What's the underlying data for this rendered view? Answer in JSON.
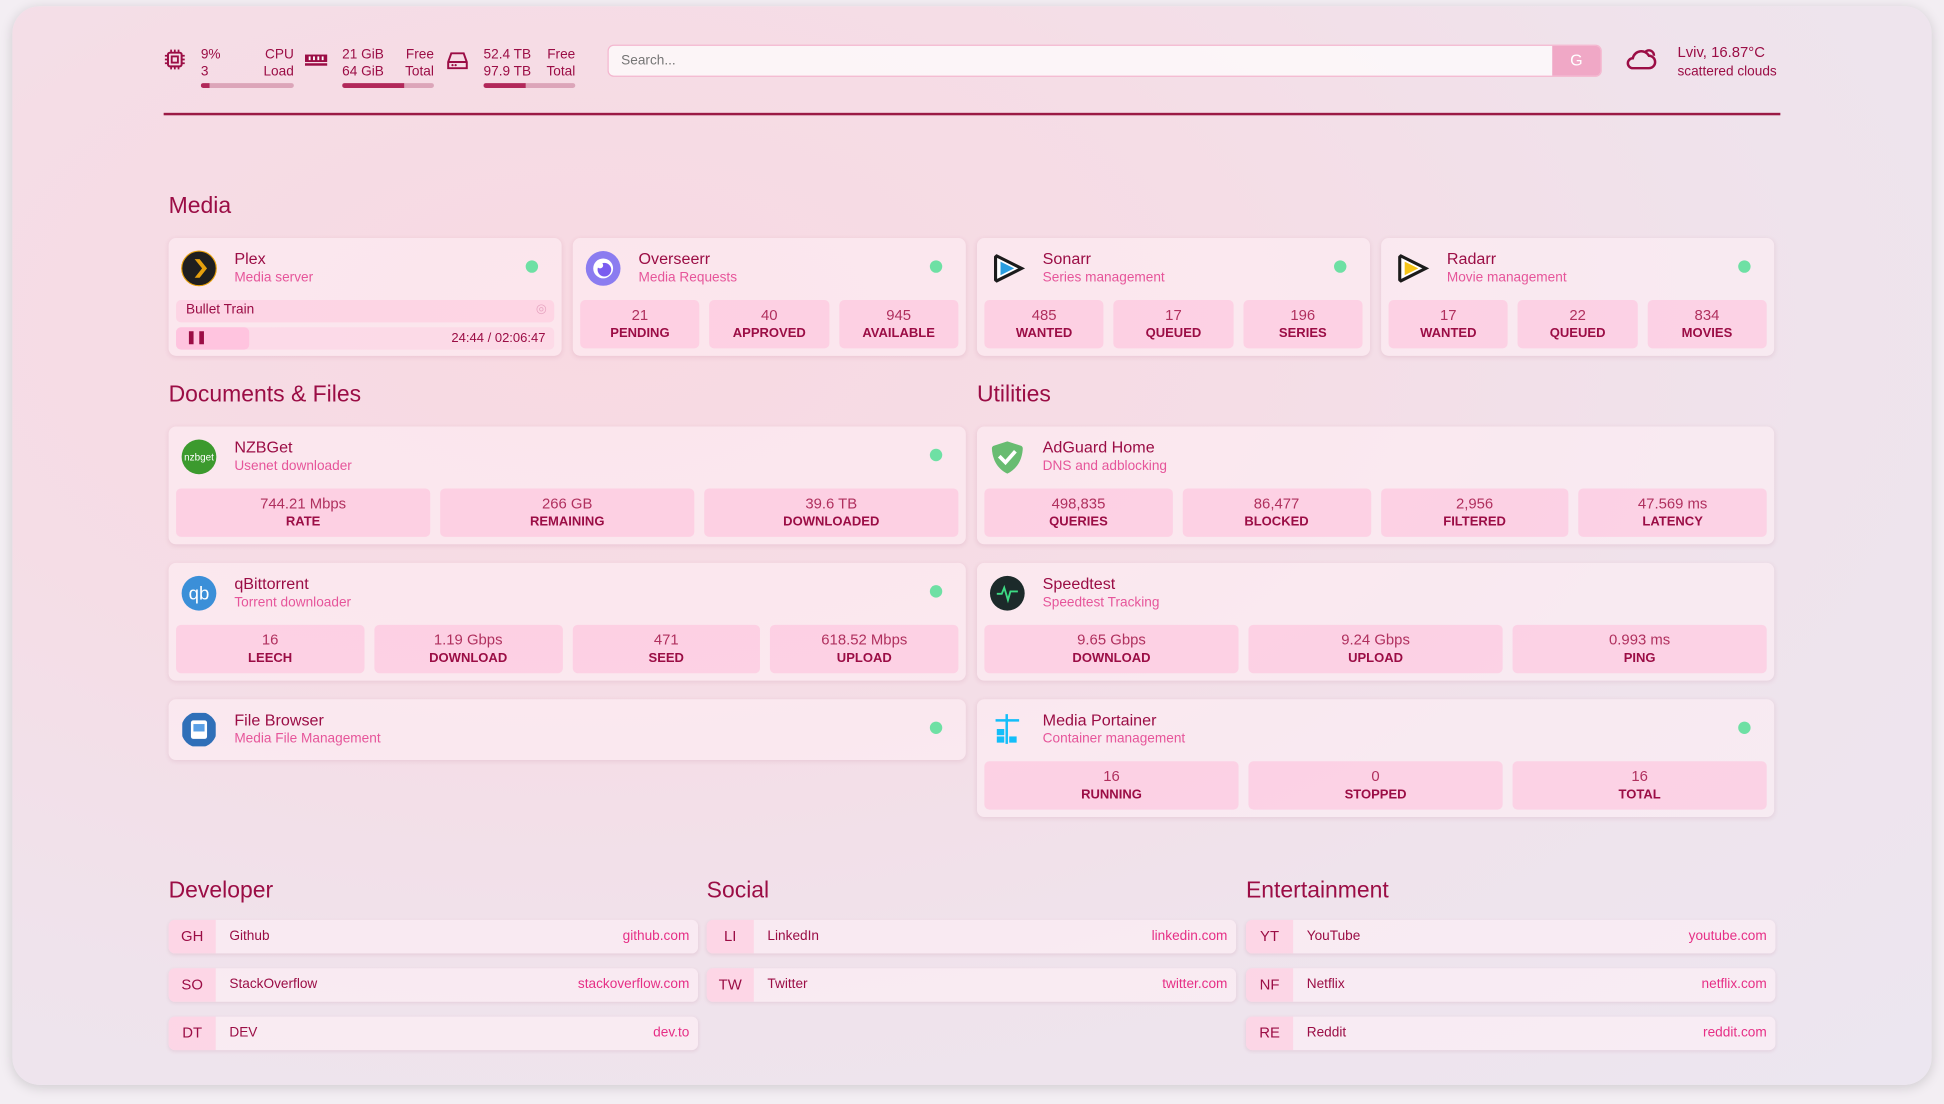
{
  "header": {
    "cpu": {
      "value": "9%",
      "label": "CPU",
      "sub_value": "3",
      "sub_label": "Load",
      "percent": 9
    },
    "memory": {
      "value": "21 GiB",
      "label": "Free",
      "sub_value": "64 GiB",
      "sub_label": "Total",
      "percent": 67
    },
    "disk": {
      "value": "52.4 TB",
      "label": "Free",
      "sub_value": "97.9 TB",
      "sub_label": "Total",
      "percent": 46
    },
    "search": {
      "placeholder": "Search...",
      "button": "G"
    },
    "weather": {
      "location": "Lviv, 16.87°C",
      "condition": "scattered clouds",
      "icon": "cloud-sun-icon"
    }
  },
  "sections": {
    "media": "Media",
    "documents": "Documents & Files",
    "utilities": "Utilities",
    "developer": "Developer",
    "social": "Social",
    "entertainment": "Entertainment"
  },
  "media": [
    {
      "id": "plex",
      "title": "Plex",
      "subtitle": "Media server",
      "icon": "plex-icon",
      "color": "#1f1f1f",
      "status": "online",
      "now_playing": {
        "title": "Bullet Train",
        "time": "24:44 / 02:06:47",
        "progress": 19.5
      }
    },
    {
      "id": "overseerr",
      "title": "Overseerr",
      "subtitle": "Media Requests",
      "icon": "overseerr-icon",
      "color": "#8b7cf0",
      "status": "online",
      "stats": [
        {
          "value": "21",
          "label": "PENDING"
        },
        {
          "value": "40",
          "label": "APPROVED"
        },
        {
          "value": "945",
          "label": "AVAILABLE"
        }
      ]
    },
    {
      "id": "sonarr",
      "title": "Sonarr",
      "subtitle": "Series management",
      "icon": "sonarr-icon",
      "color": "#2a9ee0",
      "status": "online",
      "stats": [
        {
          "value": "485",
          "label": "WANTED"
        },
        {
          "value": "17",
          "label": "QUEUED"
        },
        {
          "value": "196",
          "label": "SERIES"
        }
      ]
    },
    {
      "id": "radarr",
      "title": "Radarr",
      "subtitle": "Movie management",
      "icon": "radarr-icon",
      "color": "#f5c518",
      "status": "online",
      "stats": [
        {
          "value": "17",
          "label": "WANTED"
        },
        {
          "value": "22",
          "label": "QUEUED"
        },
        {
          "value": "834",
          "label": "MOVIES"
        }
      ]
    }
  ],
  "documents": [
    {
      "id": "nzbget",
      "title": "NZBGet",
      "subtitle": "Usenet downloader",
      "icon": "nzbget-icon",
      "icon_text": "nzbget",
      "color": "#3c9a2e",
      "status": "online",
      "stats": [
        {
          "value": "744.21 Mbps",
          "label": "RATE"
        },
        {
          "value": "266 GB",
          "label": "REMAINING"
        },
        {
          "value": "39.6 TB",
          "label": "DOWNLOADED"
        }
      ]
    },
    {
      "id": "qbittorrent",
      "title": "qBittorrent",
      "subtitle": "Torrent downloader",
      "icon": "qbittorrent-icon",
      "icon_text": "qb",
      "color": "#3b8fd8",
      "status": "online",
      "stats": [
        {
          "value": "16",
          "label": "LEECH"
        },
        {
          "value": "1.19 Gbps",
          "label": "DOWNLOAD"
        },
        {
          "value": "471",
          "label": "SEED"
        },
        {
          "value": "618.52 Mbps",
          "label": "UPLOAD"
        }
      ]
    },
    {
      "id": "filebrowser",
      "title": "File Browser",
      "subtitle": "Media File Management",
      "icon": "file-browser-icon",
      "color": "#2f6fb8",
      "status": "online"
    }
  ],
  "utilities": [
    {
      "id": "adguard",
      "title": "AdGuard Home",
      "subtitle": "DNS and adblocking",
      "icon": "adguard-shield-icon",
      "color": "#68bc71",
      "stats": [
        {
          "value": "498,835",
          "label": "QUERIES"
        },
        {
          "value": "86,477",
          "label": "BLOCKED"
        },
        {
          "value": "2,956",
          "label": "FILTERED"
        },
        {
          "value": "47.569 ms",
          "label": "LATENCY"
        }
      ]
    },
    {
      "id": "speedtest",
      "title": "Speedtest",
      "subtitle": "Speedtest Tracking",
      "icon": "speedtest-icon",
      "color": "#1c2a2a",
      "stats": [
        {
          "value": "9.65 Gbps",
          "label": "DOWNLOAD"
        },
        {
          "value": "9.24 Gbps",
          "label": "UPLOAD"
        },
        {
          "value": "0.993 ms",
          "label": "PING"
        }
      ]
    },
    {
      "id": "portainer",
      "title": "Media Portainer",
      "subtitle": "Container management",
      "icon": "portainer-icon",
      "color": "#13bef9",
      "status": "online",
      "stats": [
        {
          "value": "16",
          "label": "RUNNING"
        },
        {
          "value": "0",
          "label": "STOPPED"
        },
        {
          "value": "16",
          "label": "TOTAL"
        }
      ]
    }
  ],
  "bookmarks": {
    "developer": [
      {
        "abbr": "GH",
        "name": "Github",
        "url": "github.com"
      },
      {
        "abbr": "SO",
        "name": "StackOverflow",
        "url": "stackoverflow.com"
      },
      {
        "abbr": "DT",
        "name": "DEV",
        "url": "dev.to"
      }
    ],
    "social": [
      {
        "abbr": "LI",
        "name": "LinkedIn",
        "url": "linkedin.com"
      },
      {
        "abbr": "TW",
        "name": "Twitter",
        "url": "twitter.com"
      }
    ],
    "entertainment": [
      {
        "abbr": "YT",
        "name": "YouTube",
        "url": "youtube.com"
      },
      {
        "abbr": "NF",
        "name": "Netflix",
        "url": "netflix.com"
      },
      {
        "abbr": "RE",
        "name": "Reddit",
        "url": "reddit.com"
      }
    ]
  },
  "colors": {
    "accent": "#9b0d45",
    "subtitle": "#e6559a",
    "status_online": "#6ee0a4"
  }
}
